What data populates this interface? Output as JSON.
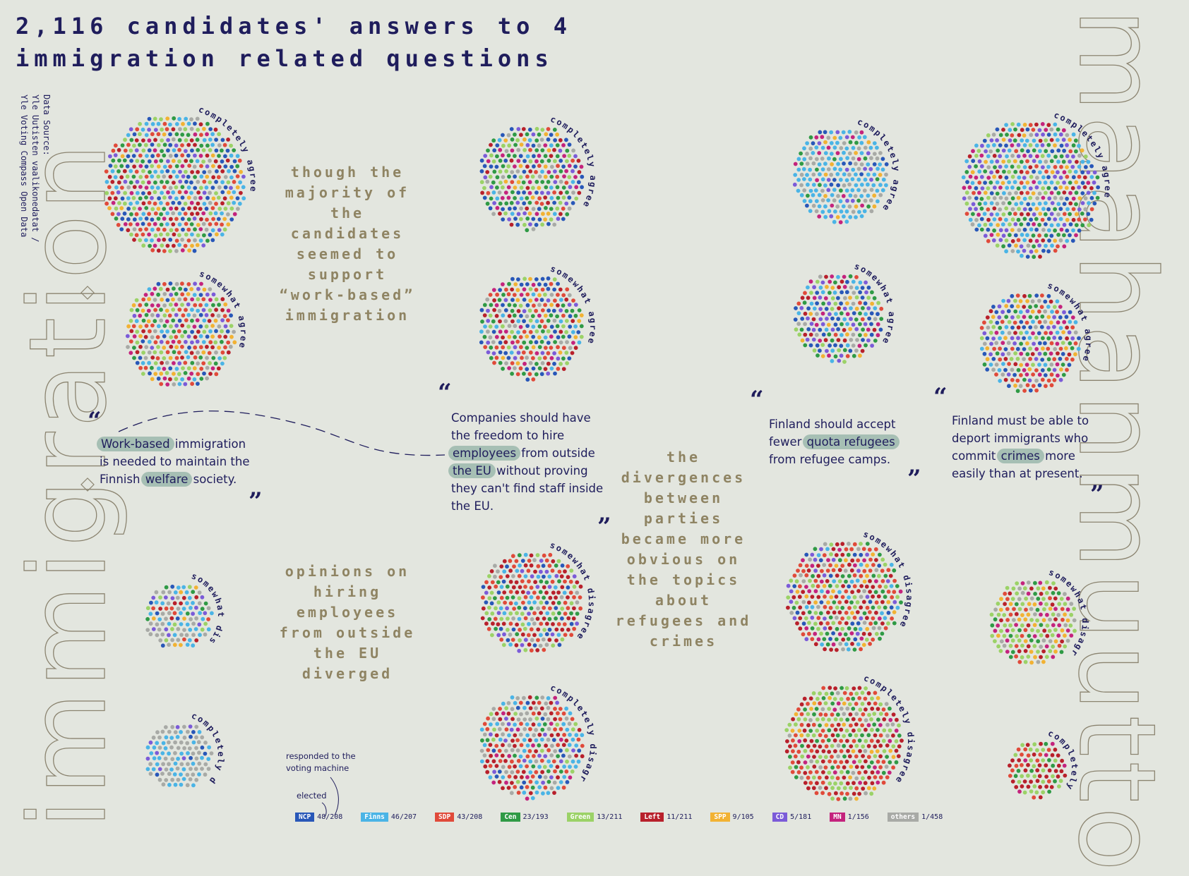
{
  "title_line1": "2,116 candidates' answers to 4",
  "title_line2": "immigration related questions",
  "source_line1": "Data Source:",
  "source_line2": "Yle Uutisten vaalikonedatat /",
  "source_line3": "Yle Voting Compass Open Data",
  "big_left": "immigration",
  "big_right": "maahanmuutto",
  "labels": {
    "ca": "completely agree",
    "sa": "somewhat agree",
    "sd": "somewhat disagree",
    "cd": "completely disagree"
  },
  "annotations": {
    "a1": [
      "though the",
      "majority of",
      "the",
      "candidates",
      "seemed to",
      "support",
      "“work-based”",
      "immigration"
    ],
    "a2": [
      "opinions on",
      "hiring",
      "employees",
      "from outside",
      "the EU",
      "diverged"
    ],
    "a3": [
      "the",
      "divergences",
      "between",
      "parties",
      "became more",
      "obvious on",
      "the topics",
      "about",
      "refugees and",
      "crimes"
    ]
  },
  "quotes": {
    "q1": {
      "p1": "Work-based",
      "p2": " immigration",
      "p3": "is needed to maintain the",
      "p4": "Finnish ",
      "p5": "welfare",
      "p6": " society."
    },
    "q2": {
      "p1": "Companies should have",
      "p2": "the freedom to hire",
      "p3": "employees",
      "p4": " from outside",
      "p5": "the EU",
      "p6": " without proving",
      "p7": "they can't find staff inside",
      "p8": "the EU."
    },
    "q3": {
      "p1": "Finland should accept",
      "p2": "fewer ",
      "p3": "quota refugees",
      "p4": "from refugee camps."
    },
    "q4": {
      "p1": "Finland must be able to",
      "p2": "deport immigrants who",
      "p3": "commit ",
      "p4": "crimes",
      "p5": " more",
      "p6": "easily than at present."
    }
  },
  "quote_open": "“",
  "quote_close": "”",
  "notes": {
    "responded": "responded to the\nvoting machine",
    "elected": "elected"
  },
  "legend": [
    {
      "party": "NCP",
      "count": "48/208",
      "color": "#2857b8"
    },
    {
      "party": "Finns",
      "count": "46/207",
      "color": "#4ab4e6"
    },
    {
      "party": "SDP",
      "count": "43/208",
      "color": "#e04a3a"
    },
    {
      "party": "Cen",
      "count": "23/193",
      "color": "#2f9a45"
    },
    {
      "party": "Green",
      "count": "13/211",
      "color": "#9bd267"
    },
    {
      "party": "Left",
      "count": "11/211",
      "color": "#b8202b"
    },
    {
      "party": "SPP",
      "count": "9/105",
      "color": "#f2b233"
    },
    {
      "party": "CD",
      "count": "5/181",
      "color": "#7b5bd8"
    },
    {
      "party": "MN",
      "count": "1/156",
      "color": "#c4237d"
    },
    {
      "party": "others",
      "count": "1/458",
      "color": "#a8aaa6"
    }
  ],
  "clusters": {
    "q1_ca": {
      "weights": [
        2,
        2,
        2,
        2,
        2,
        2,
        1,
        1,
        1,
        1
      ],
      "label": "ca"
    },
    "q1_sa": {
      "weights": [
        1,
        1,
        2,
        1,
        1,
        1,
        1,
        1,
        1,
        1
      ],
      "label": "sa"
    },
    "q1_sd": {
      "weights": [
        1,
        5,
        1,
        1,
        1,
        1,
        1,
        1,
        0,
        5
      ],
      "label": "sd"
    },
    "q1_cd": {
      "weights": [
        1,
        4,
        0,
        0,
        0,
        0,
        0,
        1,
        0,
        10
      ],
      "label": "cd"
    },
    "q2_ca": {
      "weights": [
        3,
        1,
        1,
        3,
        2,
        1,
        1,
        1,
        1,
        1
      ],
      "label": "ca"
    },
    "q2_sa": {
      "weights": [
        2,
        1,
        2,
        2,
        1,
        1,
        1,
        1,
        1,
        1
      ],
      "label": "sa"
    },
    "q2_sd": {
      "weights": [
        1,
        1,
        3,
        1,
        2,
        3,
        0,
        1,
        0,
        1
      ],
      "label": "sd"
    },
    "q2_cd": {
      "weights": [
        1,
        4,
        4,
        1,
        1,
        3,
        0,
        1,
        1,
        4
      ],
      "label": "cd"
    },
    "q3_ca": {
      "weights": [
        1,
        8,
        0,
        1,
        0,
        0,
        1,
        1,
        1,
        3
      ],
      "label": "ca"
    },
    "q3_sa": {
      "weights": [
        2,
        2,
        1,
        2,
        1,
        1,
        1,
        2,
        1,
        1
      ],
      "label": "sa"
    },
    "q3_sd": {
      "weights": [
        1,
        1,
        3,
        2,
        2,
        3,
        1,
        1,
        1,
        1
      ],
      "label": "sd"
    },
    "q3_cd": {
      "weights": [
        0,
        0,
        3,
        2,
        3,
        4,
        1,
        0,
        1,
        1
      ],
      "label": "cd"
    },
    "q4_ca": {
      "weights": [
        2,
        3,
        1,
        2,
        1,
        1,
        1,
        2,
        1,
        1
      ],
      "label": "ca"
    },
    "q4_sa": {
      "weights": [
        2,
        1,
        2,
        2,
        1,
        1,
        1,
        2,
        1,
        1
      ],
      "label": "sa"
    },
    "q4_sd": {
      "weights": [
        0,
        0,
        1,
        1,
        3,
        1,
        1,
        0,
        1,
        1
      ],
      "label": "sd"
    },
    "q4_cd": {
      "weights": [
        0,
        0,
        2,
        1,
        3,
        5,
        0,
        0,
        1,
        0
      ],
      "label": "cd"
    }
  }
}
